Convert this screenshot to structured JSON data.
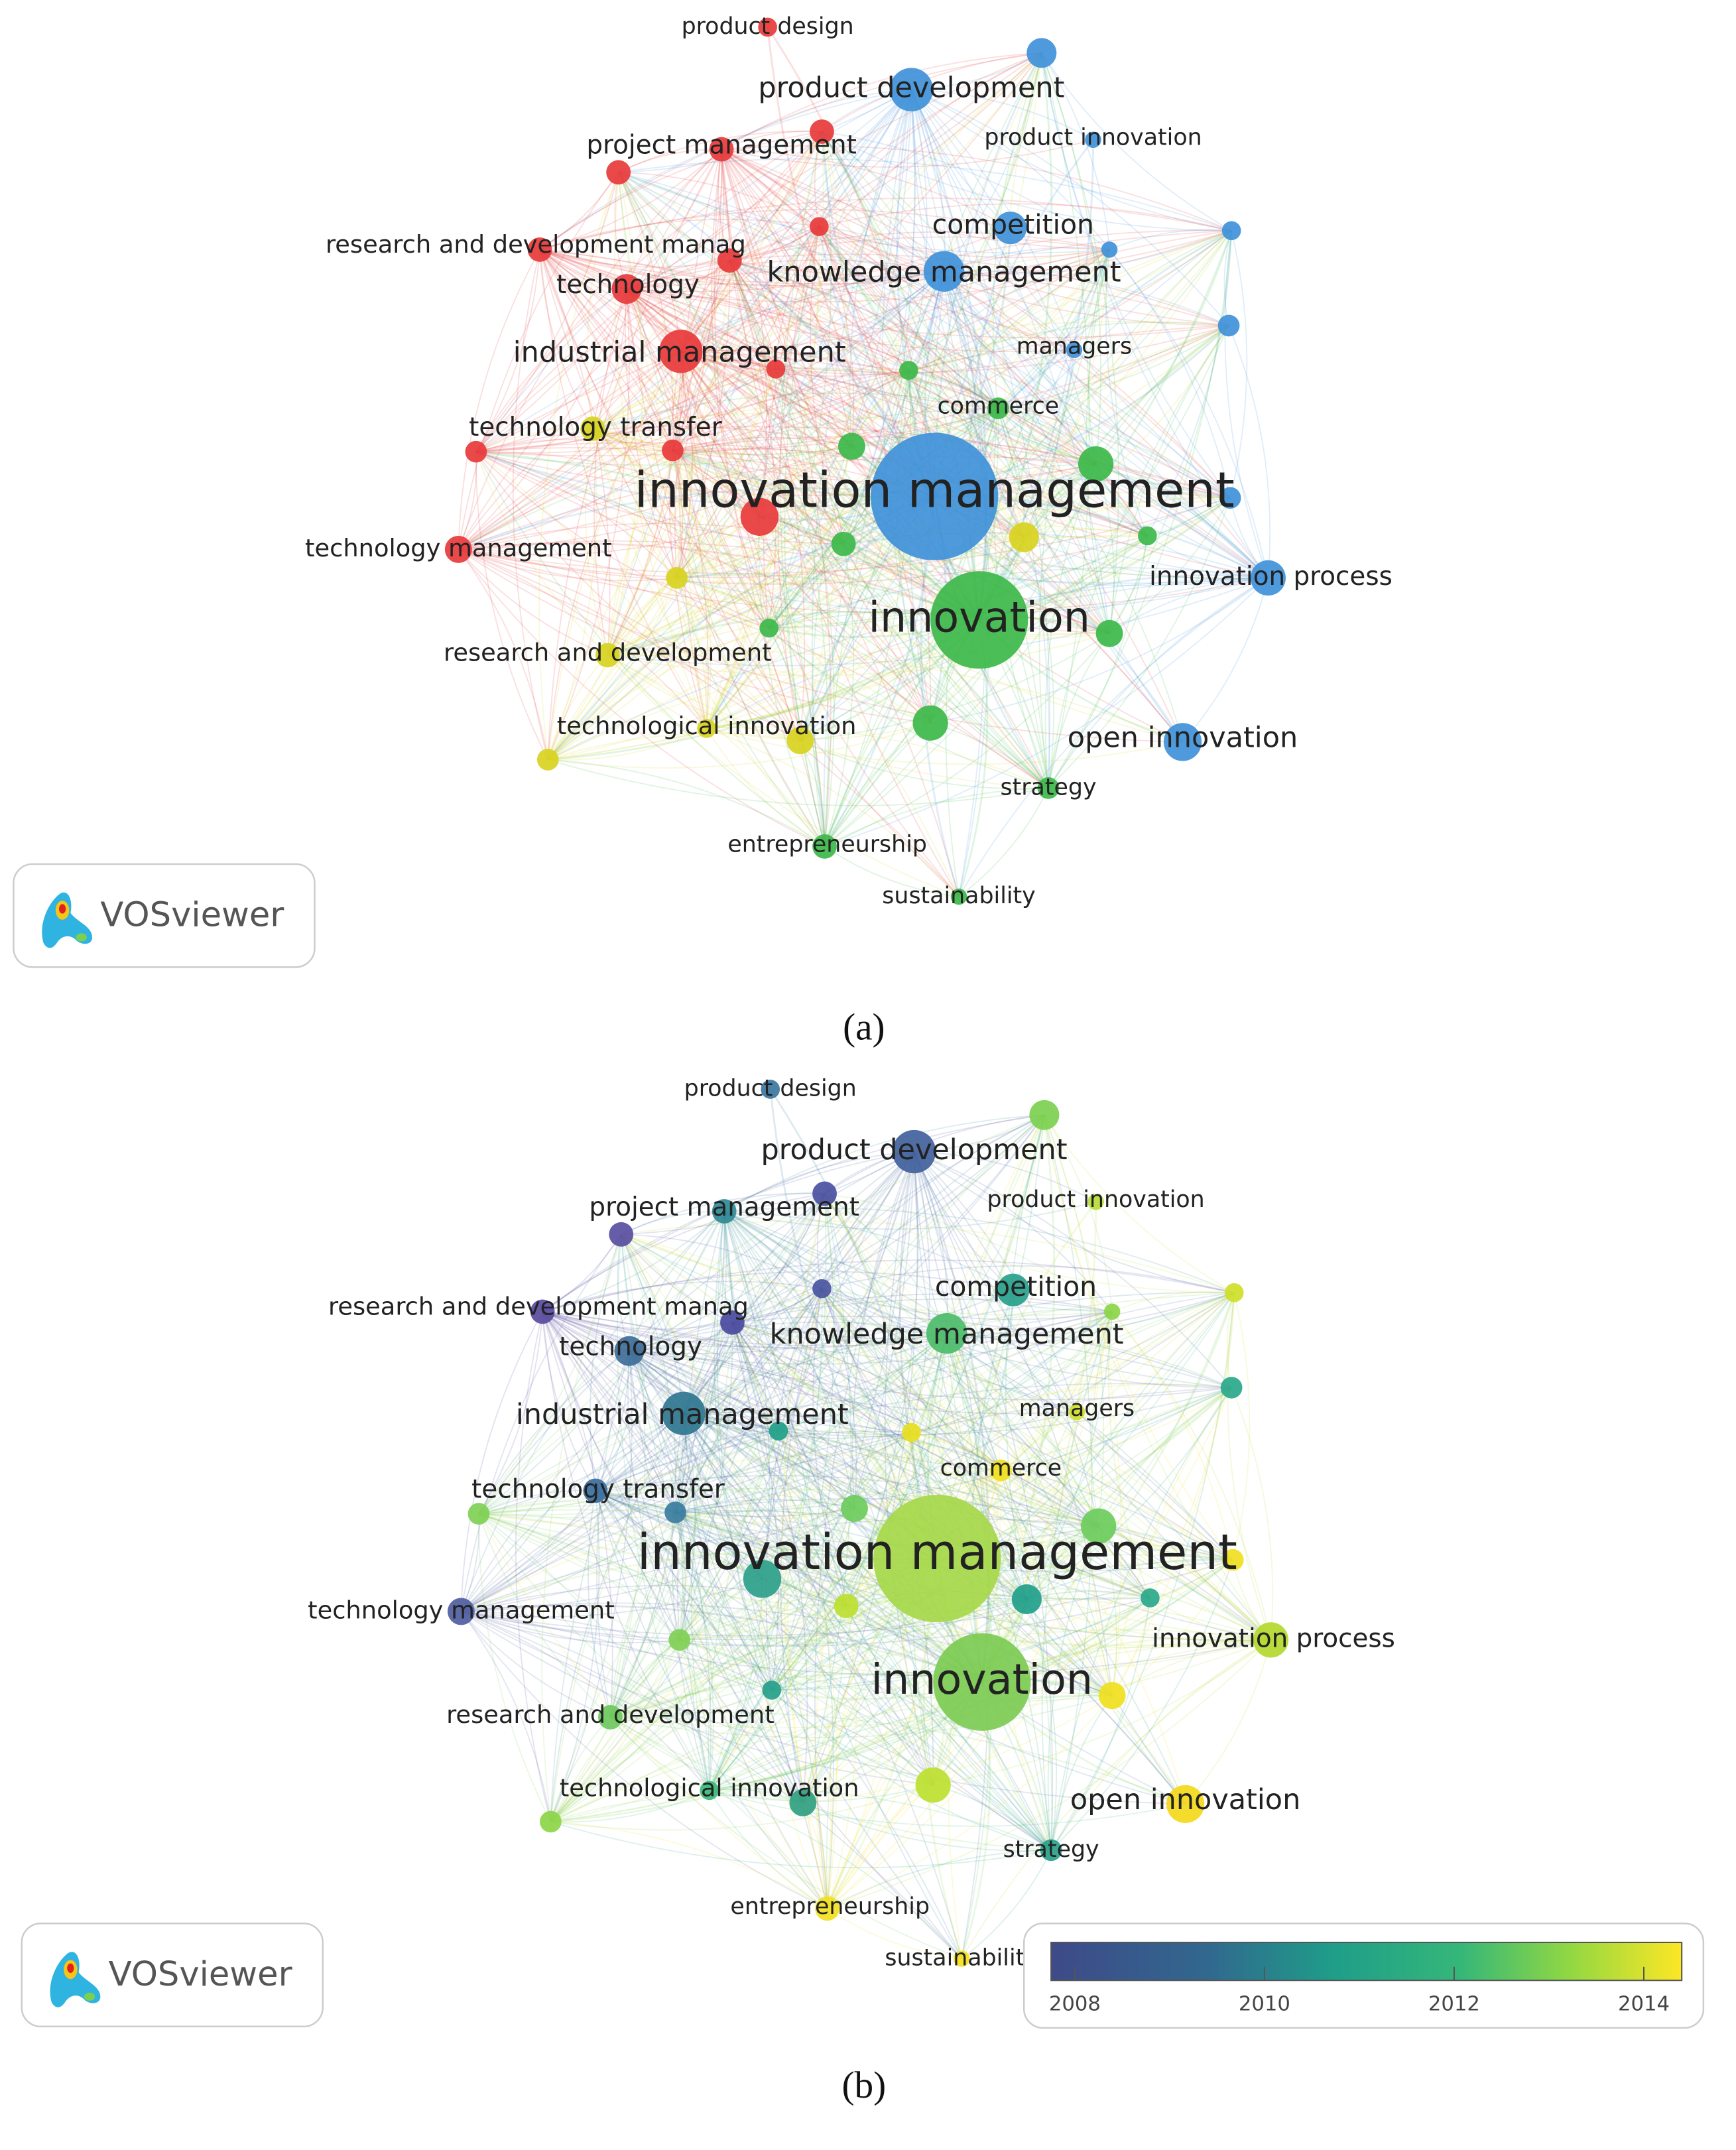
{
  "panels": [
    {
      "caption": "(a)",
      "logo": "VOSviewer",
      "nodes": [
        {
          "label": "product design",
          "color": "#e8393b"
        },
        {
          "label": "product development",
          "color": "#3f91d9"
        },
        {
          "label": "project management",
          "color": "#e8393b"
        },
        {
          "label": "product innovation",
          "color": "#3f91d9"
        },
        {
          "label": "research and development manag",
          "color": "#e8393b"
        },
        {
          "label": "technology",
          "color": "#e8393b"
        },
        {
          "label": "competition",
          "color": "#3f91d9"
        },
        {
          "label": "knowledge management",
          "color": "#3f91d9"
        },
        {
          "label": "industrial management",
          "color": "#e8393b"
        },
        {
          "label": "managers",
          "color": "#3f91d9"
        },
        {
          "label": "commerce",
          "color": "#3db84a"
        },
        {
          "label": "technology transfer",
          "color": "#d8d21f"
        },
        {
          "label": "innovation management",
          "color": "#3f91d9"
        },
        {
          "label": "technology management",
          "color": "#e8393b"
        },
        {
          "label": "innovation process",
          "color": "#3f91d9"
        },
        {
          "label": "innovation",
          "color": "#3db84a"
        },
        {
          "label": "research and development",
          "color": "#d8d21f"
        },
        {
          "label": "technological innovation",
          "color": "#d8d21f"
        },
        {
          "label": "open innovation",
          "color": "#3f91d9"
        },
        {
          "label": "strategy",
          "color": "#3db84a"
        },
        {
          "label": "entrepreneurship",
          "color": "#3db84a"
        },
        {
          "label": "sustainability",
          "color": "#3db84a"
        }
      ]
    },
    {
      "caption": "(b)",
      "logo": "VOSviewer",
      "nodes": [
        {
          "label": "product design",
          "color": "#3b76a0"
        },
        {
          "label": "product development",
          "color": "#41619c"
        },
        {
          "label": "project management",
          "color": "#2f8a95"
        },
        {
          "label": "product innovation",
          "color": "#b9dc38"
        },
        {
          "label": "research and development manag",
          "color": "#5a4a9e"
        },
        {
          "label": "technology",
          "color": "#3e6e9a"
        },
        {
          "label": "competition",
          "color": "#27a08a"
        },
        {
          "label": "knowledge management",
          "color": "#4cbc6a"
        },
        {
          "label": "industrial management",
          "color": "#2f7690"
        },
        {
          "label": "managers",
          "color": "#cfe02a"
        },
        {
          "label": "commerce",
          "color": "#f0e020"
        },
        {
          "label": "technology transfer",
          "color": "#3a6ea0"
        },
        {
          "label": "innovation management",
          "color": "#a6d84a"
        },
        {
          "label": "technology management",
          "color": "#4e5ea0"
        },
        {
          "label": "innovation process",
          "color": "#b4d82e"
        },
        {
          "label": "innovation",
          "color": "#7ccb52"
        },
        {
          "label": "research and development",
          "color": "#6cc85c"
        },
        {
          "label": "technological innovation",
          "color": "#3cb87a"
        },
        {
          "label": "open innovation",
          "color": "#f4d81a"
        },
        {
          "label": "strategy",
          "color": "#2aa08a"
        },
        {
          "label": "entrepreneurship",
          "color": "#f2e020"
        },
        {
          "label": "sustainability",
          "color": "#f6e020"
        }
      ],
      "colorbar": {
        "range": [
          2007.75,
          2014.4
        ],
        "ticks": [
          2008,
          2010,
          2012,
          2014
        ]
      }
    }
  ]
}
